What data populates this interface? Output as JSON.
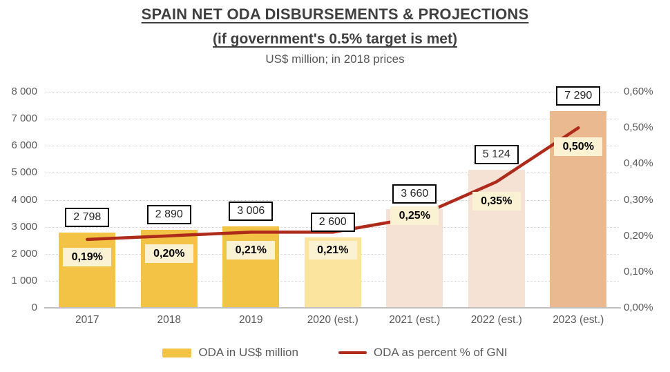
{
  "header": {
    "title": "SPAIN NET ODA DISBURSEMENTS & PROJECTIONS",
    "subtitle": "(if government's 0.5% target is met)",
    "caption": "US$ million; in 2018 prices"
  },
  "legend": {
    "bar_label": "ODA in US$ million",
    "line_label": "ODA as percent % of GNI"
  },
  "colors": {
    "bar_gold": "#F2C345",
    "bar_pale_yellow": "#FAE49E",
    "bar_pale_peach": "#F5E2D4",
    "bar_tan": "#EBB98F",
    "line_red": "#AE2B1B",
    "percent_label_bg": "#FBF2D3",
    "value_box_border": "#000000",
    "axis_text": "#595959",
    "gridline": "#D6D6D6",
    "baseline": "#BFBFBF",
    "title_text": "#3F3F3F"
  },
  "chart_data": {
    "type": "bar",
    "combo": "bar+line dual-axis",
    "title": "SPAIN NET ODA DISBURSEMENTS & PROJECTIONS (if government's 0.5% target is met)",
    "subtitle": "US$ million; in 2018 prices",
    "categories": [
      "2017",
      "2018",
      "2019",
      "2020 (est.)",
      "2021 (est.)",
      "2022 (est.)",
      "2023 (est.)"
    ],
    "series": [
      {
        "name": "ODA in US$ million",
        "type": "bar",
        "axis": "left",
        "values": [
          2798,
          2890,
          3006,
          2600,
          3660,
          5124,
          7290
        ],
        "data_labels": [
          "2 798",
          "2 890",
          "3 006",
          "2 600",
          "3 660",
          "5 124",
          "7 290"
        ],
        "bar_colors": [
          "#F2C345",
          "#F2C345",
          "#F2C345",
          "#FAE49E",
          "#F5E2D4",
          "#F5E2D4",
          "#EBB98F"
        ]
      },
      {
        "name": "ODA as percent % of GNI",
        "type": "line",
        "axis": "right",
        "values": [
          0.19,
          0.2,
          0.21,
          0.21,
          0.25,
          0.35,
          0.5
        ],
        "data_labels": [
          "0,19%",
          "0,20%",
          "0,21%",
          "0,21%",
          "0,25%",
          "0,35%",
          "0,50%"
        ],
        "color": "#AE2B1B"
      }
    ],
    "axes": {
      "left": {
        "min": 0,
        "max": 8000,
        "step": 1000,
        "tick_labels": [
          "0",
          "1 000",
          "2 000",
          "3 000",
          "4 000",
          "5 000",
          "6 000",
          "7 000",
          "8 000"
        ]
      },
      "right": {
        "min": 0,
        "max": 0.6,
        "step": 0.1,
        "tick_labels": [
          "0,00%",
          "0,10%",
          "0,20%",
          "0,30%",
          "0,40%",
          "0,50%",
          "0,60%"
        ]
      }
    },
    "grid": "horizontal dotted",
    "legend_position": "bottom"
  }
}
